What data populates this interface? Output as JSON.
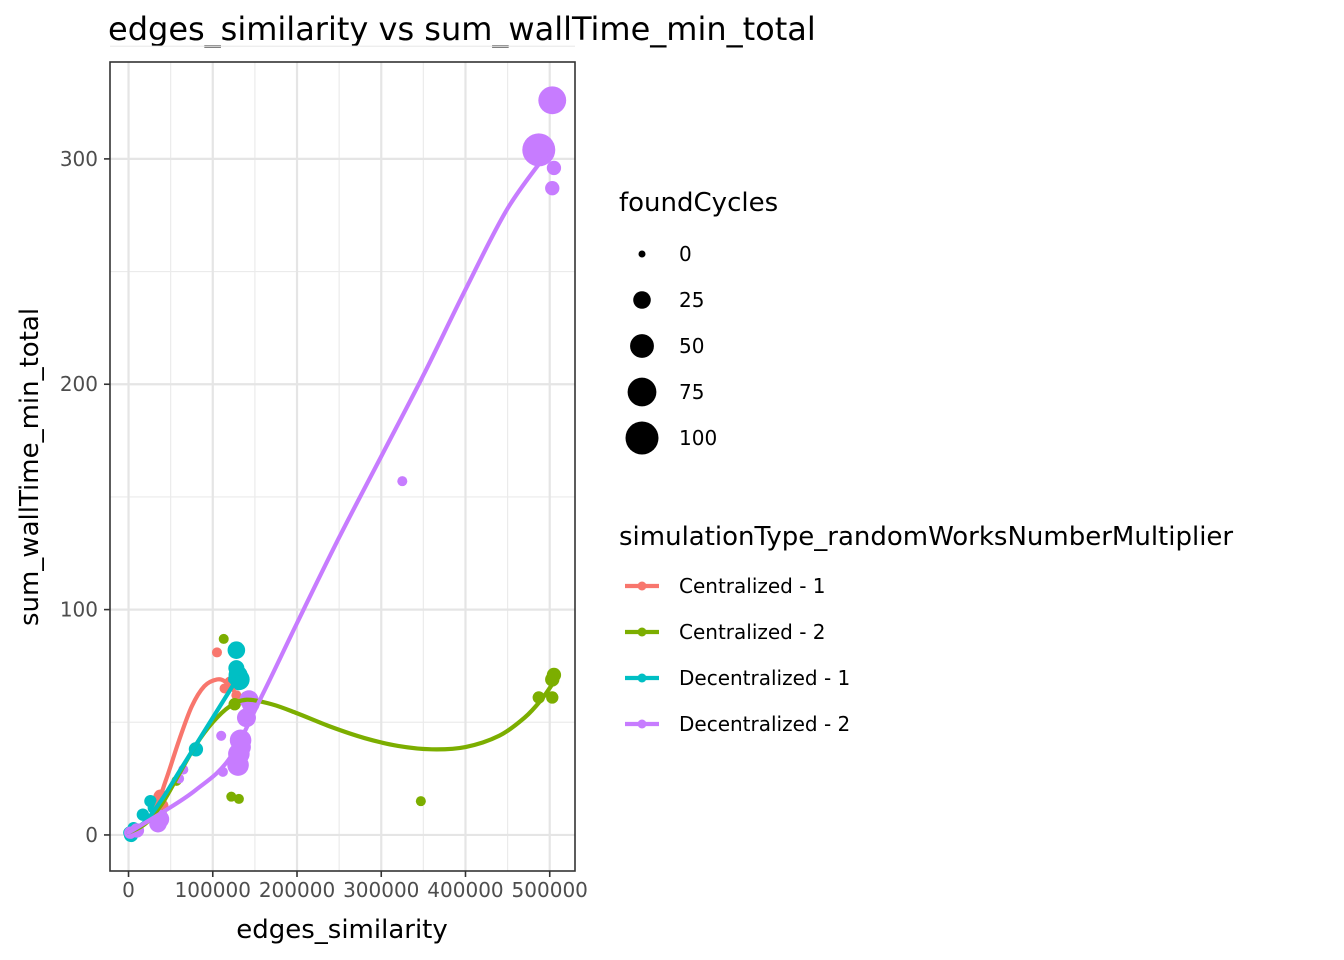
{
  "chart_data": {
    "type": "scatter",
    "title": "edges_similarity  vs  sum_wallTime_min_total",
    "xlabel": "edges_similarity",
    "ylabel": "sum_wallTime_min_total",
    "xlim": [
      -22000,
      530000
    ],
    "ylim": [
      -16,
      343
    ],
    "x_ticks": [
      0,
      100000,
      200000,
      300000,
      400000,
      500000
    ],
    "x_tick_labels": [
      "0",
      "100000",
      "200000",
      "300000",
      "400000",
      "500000"
    ],
    "y_ticks": [
      0,
      100,
      200,
      300
    ],
    "y_tick_labels": [
      "0",
      "100",
      "200",
      "300"
    ],
    "grid": true,
    "size_legend": {
      "title": "foundCycles",
      "entries": [
        {
          "label": "0",
          "value": 0
        },
        {
          "label": "25",
          "value": 25
        },
        {
          "label": "50",
          "value": 50
        },
        {
          "label": "75",
          "value": 75
        },
        {
          "label": "100",
          "value": 100
        }
      ]
    },
    "color_legend": {
      "title": "simulationType_randomWorksNumberMultiplier",
      "placement": "right"
    },
    "series": [
      {
        "name": "Centralized - 1",
        "color": "#F8766D",
        "points": [
          {
            "x": 2000,
            "y": 1,
            "size": 5
          },
          {
            "x": 5000,
            "y": 2,
            "size": 5
          },
          {
            "x": 38000,
            "y": 17,
            "size": 15
          },
          {
            "x": 40000,
            "y": 13,
            "size": 10
          },
          {
            "x": 105000,
            "y": 81,
            "size": 5
          },
          {
            "x": 114000,
            "y": 65,
            "size": 5
          },
          {
            "x": 120000,
            "y": 68,
            "size": 5
          },
          {
            "x": 128000,
            "y": 62,
            "size": 5
          }
        ],
        "smooth": [
          {
            "x": 0,
            "y": 1
          },
          {
            "x": 15000,
            "y": 4
          },
          {
            "x": 30000,
            "y": 10
          },
          {
            "x": 45000,
            "y": 25
          },
          {
            "x": 60000,
            "y": 42
          },
          {
            "x": 75000,
            "y": 57
          },
          {
            "x": 90000,
            "y": 66
          },
          {
            "x": 105000,
            "y": 69
          },
          {
            "x": 115000,
            "y": 68
          },
          {
            "x": 125000,
            "y": 64
          }
        ]
      },
      {
        "name": "Centralized - 2",
        "color": "#7CAE00",
        "points": [
          {
            "x": 3000,
            "y": 1,
            "size": 5
          },
          {
            "x": 12000,
            "y": 2,
            "size": 5
          },
          {
            "x": 40000,
            "y": 9,
            "size": 5
          },
          {
            "x": 57000,
            "y": 24,
            "size": 5
          },
          {
            "x": 80000,
            "y": 38,
            "size": 5
          },
          {
            "x": 113000,
            "y": 87,
            "size": 5
          },
          {
            "x": 122000,
            "y": 17,
            "size": 5
          },
          {
            "x": 131000,
            "y": 16,
            "size": 5
          },
          {
            "x": 126000,
            "y": 58,
            "size": 10
          },
          {
            "x": 140000,
            "y": 61,
            "size": 10
          },
          {
            "x": 347000,
            "y": 15,
            "size": 5
          },
          {
            "x": 487000,
            "y": 61,
            "size": 10
          },
          {
            "x": 503000,
            "y": 61,
            "size": 10
          },
          {
            "x": 503000,
            "y": 69,
            "size": 15
          },
          {
            "x": 505000,
            "y": 71,
            "size": 15
          }
        ],
        "smooth": [
          {
            "x": 0,
            "y": 1
          },
          {
            "x": 20000,
            "y": 5
          },
          {
            "x": 40000,
            "y": 14
          },
          {
            "x": 60000,
            "y": 27
          },
          {
            "x": 80000,
            "y": 40
          },
          {
            "x": 100000,
            "y": 50
          },
          {
            "x": 120000,
            "y": 57
          },
          {
            "x": 140000,
            "y": 60
          },
          {
            "x": 170000,
            "y": 58
          },
          {
            "x": 200000,
            "y": 54
          },
          {
            "x": 240000,
            "y": 48
          },
          {
            "x": 280000,
            "y": 43
          },
          {
            "x": 320000,
            "y": 39.5
          },
          {
            "x": 360000,
            "y": 38
          },
          {
            "x": 400000,
            "y": 39
          },
          {
            "x": 440000,
            "y": 44
          },
          {
            "x": 470000,
            "y": 52
          },
          {
            "x": 490000,
            "y": 60
          },
          {
            "x": 505000,
            "y": 68
          }
        ]
      },
      {
        "name": "Decentralized - 1",
        "color": "#00BFC4",
        "points": [
          {
            "x": 1000,
            "y": 1,
            "size": 10
          },
          {
            "x": 3000,
            "y": 0,
            "size": 15
          },
          {
            "x": 6000,
            "y": 3,
            "size": 10
          },
          {
            "x": 10000,
            "y": 2,
            "size": 10
          },
          {
            "x": 17000,
            "y": 9,
            "size": 10
          },
          {
            "x": 26000,
            "y": 15,
            "size": 10
          },
          {
            "x": 30000,
            "y": 12,
            "size": 10
          },
          {
            "x": 80000,
            "y": 38,
            "size": 15
          },
          {
            "x": 128000,
            "y": 82,
            "size": 25
          },
          {
            "x": 128000,
            "y": 74,
            "size": 20
          },
          {
            "x": 130000,
            "y": 71,
            "size": 30
          },
          {
            "x": 131000,
            "y": 69,
            "size": 40
          }
        ],
        "smooth": [
          {
            "x": 0,
            "y": 1
          },
          {
            "x": 20000,
            "y": 6
          },
          {
            "x": 40000,
            "y": 16
          },
          {
            "x": 60000,
            "y": 28
          },
          {
            "x": 80000,
            "y": 40
          },
          {
            "x": 100000,
            "y": 52
          },
          {
            "x": 115000,
            "y": 61
          },
          {
            "x": 125000,
            "y": 67
          },
          {
            "x": 130000,
            "y": 70
          }
        ]
      },
      {
        "name": "Decentralized - 2",
        "color": "#C77CFF",
        "points": [
          {
            "x": 2000,
            "y": 1,
            "size": 10
          },
          {
            "x": 10000,
            "y": 2,
            "size": 15
          },
          {
            "x": 35000,
            "y": 5,
            "size": 25
          },
          {
            "x": 37000,
            "y": 7,
            "size": 30
          },
          {
            "x": 60000,
            "y": 25,
            "size": 5
          },
          {
            "x": 65000,
            "y": 29,
            "size": 5
          },
          {
            "x": 110000,
            "y": 44,
            "size": 5
          },
          {
            "x": 112000,
            "y": 28,
            "size": 5
          },
          {
            "x": 130000,
            "y": 31,
            "size": 40
          },
          {
            "x": 131000,
            "y": 36,
            "size": 40
          },
          {
            "x": 133000,
            "y": 42,
            "size": 40
          },
          {
            "x": 134000,
            "y": 39,
            "size": 30
          },
          {
            "x": 140000,
            "y": 52,
            "size": 30
          },
          {
            "x": 143000,
            "y": 60,
            "size": 30
          },
          {
            "x": 145000,
            "y": 58,
            "size": 25
          },
          {
            "x": 325000,
            "y": 157,
            "size": 5
          },
          {
            "x": 487000,
            "y": 304,
            "size": 100
          },
          {
            "x": 503000,
            "y": 326,
            "size": 70
          },
          {
            "x": 503000,
            "y": 287,
            "size": 15
          },
          {
            "x": 505000,
            "y": 296,
            "size": 15
          }
        ],
        "smooth": [
          {
            "x": 0,
            "y": 1
          },
          {
            "x": 40000,
            "y": 10
          },
          {
            "x": 80000,
            "y": 20
          },
          {
            "x": 120000,
            "y": 34
          },
          {
            "x": 160000,
            "y": 63
          },
          {
            "x": 200000,
            "y": 94
          },
          {
            "x": 250000,
            "y": 132
          },
          {
            "x": 300000,
            "y": 168
          },
          {
            "x": 350000,
            "y": 204
          },
          {
            "x": 400000,
            "y": 242
          },
          {
            "x": 450000,
            "y": 278
          },
          {
            "x": 500000,
            "y": 304
          }
        ]
      }
    ]
  }
}
